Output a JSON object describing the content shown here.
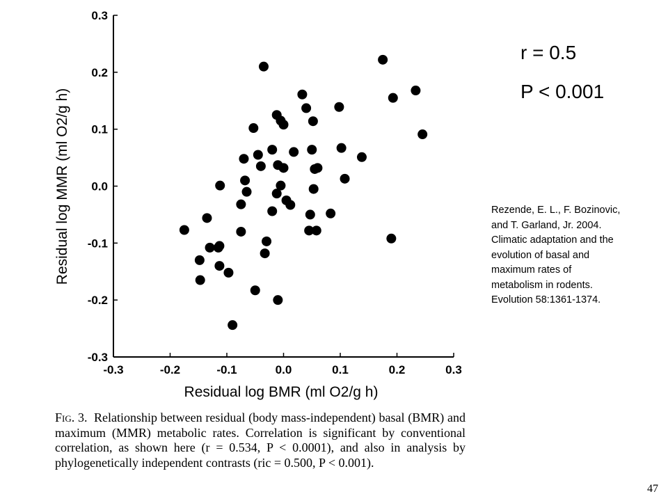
{
  "chart_data": {
    "type": "scatter",
    "xlabel": "Residual log BMR (ml O2/g h)",
    "ylabel": "Residual log MMR (ml O2/g h)",
    "xlim": [
      -0.3,
      0.3
    ],
    "ylim": [
      -0.3,
      0.3
    ],
    "xticks": [
      "-0.3",
      "-0.2",
      "-0.1",
      "0.0",
      "0.1",
      "0.2",
      "0.3"
    ],
    "yticks": [
      "-0.3",
      "-0.2",
      "-0.1",
      "0.0",
      "0.1",
      "0.2",
      "0.3"
    ],
    "grid": false,
    "points": [
      {
        "x": -0.035,
        "y": 0.21
      },
      {
        "x": 0.175,
        "y": 0.222
      },
      {
        "x": 0.233,
        "y": 0.168
      },
      {
        "x": 0.193,
        "y": 0.155
      },
      {
        "x": 0.245,
        "y": 0.091
      },
      {
        "x": 0.033,
        "y": 0.161
      },
      {
        "x": 0.04,
        "y": 0.137
      },
      {
        "x": 0.098,
        "y": 0.139
      },
      {
        "x": -0.012,
        "y": 0.125
      },
      {
        "x": -0.005,
        "y": 0.115
      },
      {
        "x": 0.0,
        "y": 0.108
      },
      {
        "x": 0.052,
        "y": 0.114
      },
      {
        "x": -0.053,
        "y": 0.102
      },
      {
        "x": -0.02,
        "y": 0.064
      },
      {
        "x": 0.018,
        "y": 0.06
      },
      {
        "x": 0.05,
        "y": 0.064
      },
      {
        "x": 0.102,
        "y": 0.067
      },
      {
        "x": -0.07,
        "y": 0.048
      },
      {
        "x": -0.045,
        "y": 0.055
      },
      {
        "x": 0.138,
        "y": 0.051
      },
      {
        "x": -0.04,
        "y": 0.035
      },
      {
        "x": -0.01,
        "y": 0.037
      },
      {
        "x": 0.0,
        "y": 0.032
      },
      {
        "x": 0.055,
        "y": 0.03
      },
      {
        "x": 0.06,
        "y": 0.032
      },
      {
        "x": 0.108,
        "y": 0.013
      },
      {
        "x": -0.112,
        "y": 0.001
      },
      {
        "x": -0.068,
        "y": 0.01
      },
      {
        "x": -0.005,
        "y": 0.001
      },
      {
        "x": 0.053,
        "y": -0.005
      },
      {
        "x": -0.065,
        "y": -0.01
      },
      {
        "x": -0.012,
        "y": -0.013
      },
      {
        "x": 0.005,
        "y": -0.025
      },
      {
        "x": 0.012,
        "y": -0.033
      },
      {
        "x": -0.075,
        "y": -0.032
      },
      {
        "x": -0.02,
        "y": -0.044
      },
      {
        "x": 0.047,
        "y": -0.05
      },
      {
        "x": 0.083,
        "y": -0.048
      },
      {
        "x": -0.175,
        "y": -0.077
      },
      {
        "x": -0.135,
        "y": -0.056
      },
      {
        "x": -0.075,
        "y": -0.08
      },
      {
        "x": 0.045,
        "y": -0.078
      },
      {
        "x": 0.058,
        "y": -0.078
      },
      {
        "x": 0.19,
        "y": -0.092
      },
      {
        "x": -0.03,
        "y": -0.097
      },
      {
        "x": -0.13,
        "y": -0.108
      },
      {
        "x": -0.113,
        "y": -0.105
      },
      {
        "x": -0.115,
        "y": -0.108
      },
      {
        "x": -0.033,
        "y": -0.118
      },
      {
        "x": -0.148,
        "y": -0.13
      },
      {
        "x": -0.113,
        "y": -0.14
      },
      {
        "x": -0.097,
        "y": -0.152
      },
      {
        "x": -0.147,
        "y": -0.165
      },
      {
        "x": -0.05,
        "y": -0.183
      },
      {
        "x": -0.01,
        "y": -0.2
      },
      {
        "x": -0.09,
        "y": -0.244
      }
    ]
  },
  "annotations": {
    "r": "r = 0.5",
    "p": "P < 0.001"
  },
  "citation": [
    "Rezende, E. L., F. Bozinovic,",
    "and T. Garland, Jr. 2004.",
    "Climatic adaptation and the",
    "evolution of basal and",
    "maximum rates of",
    "metabolism in rodents.",
    "Evolution 58:1361-1374."
  ],
  "caption": {
    "label": "Fig. 3.",
    "text": "Relationship between residual (body mass-independent) basal (BMR) and maximum (MMR) metabolic rates. Correlation is significant by conventional correlation, as shown here (r = 0.534, P < 0.0001), and also in analysis by phylogenetically independent contrasts (ric = 0.500, P < 0.001)."
  },
  "page_number": "47"
}
